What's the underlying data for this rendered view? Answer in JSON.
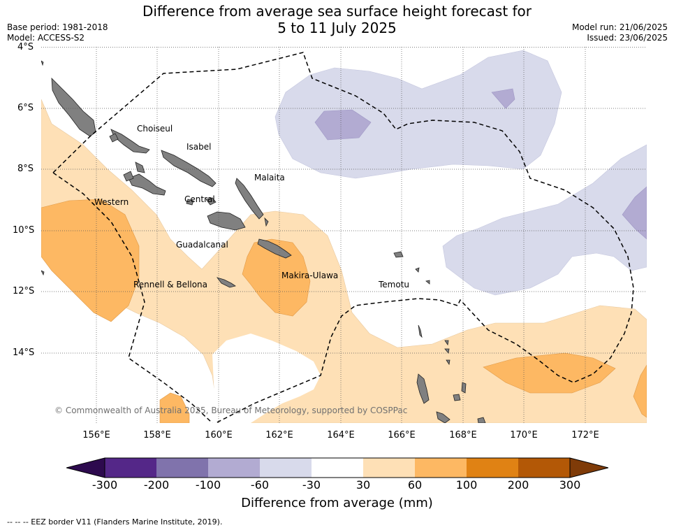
{
  "title_line1": "Difference from average sea surface height forecast for",
  "title_line2": "5 to 11 July 2025",
  "base_period": "Base period: 1981-2018",
  "model": "Model: ACCESS-S2",
  "model_run": "Model run: 21/06/2025",
  "issued": "Issued: 23/06/2025",
  "lat_labels": [
    "4°S",
    "6°S",
    "8°S",
    "10°S",
    "12°S",
    "14°S"
  ],
  "lon_labels": [
    "156°E",
    "158°E",
    "160°E",
    "162°E",
    "164°E",
    "166°E",
    "168°E",
    "170°E",
    "172°E"
  ],
  "regions": {
    "choiseul": "Choiseul",
    "isabel": "Isabel",
    "malaita": "Malaita",
    "western": "Western",
    "central": "Central",
    "guadalcanal": "Guadalcanal",
    "makira": "Makira-Ulawa",
    "rennell": "Rennell & Bellona",
    "temotu": "Temotu"
  },
  "copyright": "© Commonwealth of Australia 2025, Bureau of Meteorology, supported by COSPPac",
  "colorbar": {
    "title": "Difference from average (mm)",
    "labels": [
      "-300",
      "-200",
      "-100",
      "-60",
      "-30",
      "30",
      "60",
      "100",
      "200",
      "300"
    ],
    "colors": [
      "#2d0a4e",
      "#542788",
      "#8073ac",
      "#b2abd2",
      "#d8daeb",
      "#ffffff",
      "#fee0b6",
      "#fdb863",
      "#e08214",
      "#b35806",
      "#7f3b08"
    ]
  },
  "legend_text": "--  --  -- EEZ border V11 (Flanders Marine Institute, 2019)."
}
